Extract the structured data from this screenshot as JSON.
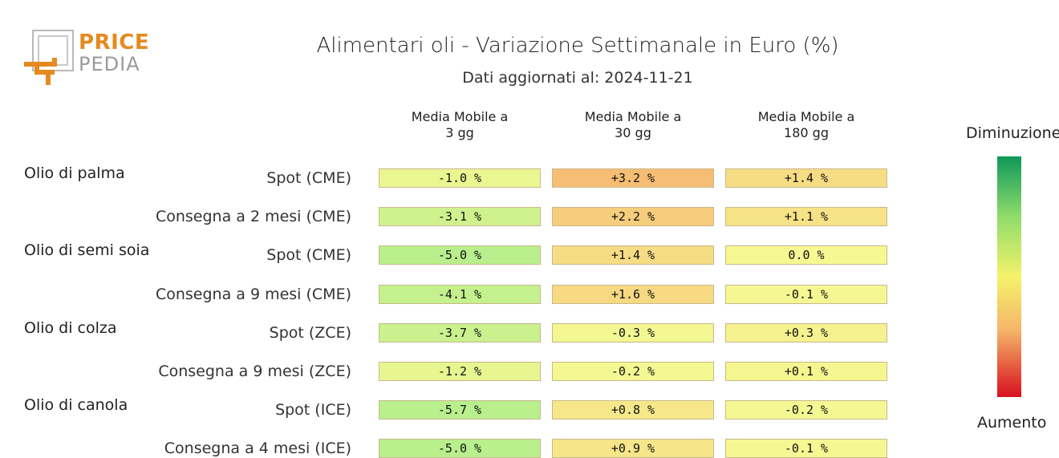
{
  "logo": {
    "price": "PRICE",
    "pedia": "PEDIA"
  },
  "title": "Alimentari oli - Variazione Settimanale in Euro (%)",
  "subtitle": "Dati aggiornati al: 2024-11-21",
  "legend": {
    "top_label": "Diminuzione",
    "bottom_label": "Aumento"
  },
  "colors": {
    "strong_decrease": "#10985a",
    "decrease": "#8fdc6a",
    "neutral": "#f4f26a",
    "increase": "#f5b66a",
    "strong_increase": "#d8101e",
    "logo_orange": "#e58a1f",
    "logo_gray": "#9a9a9a"
  },
  "chart_data": {
    "type": "heatmap",
    "title": "Alimentari oli - Variazione Settimanale in Euro (%)",
    "subtitle": "Dati aggiornati al: 2024-11-21",
    "columns": [
      "Media Mobile a\n3 gg",
      "Media Mobile a\n30 gg",
      "Media Mobile a\n180 gg"
    ],
    "groups": [
      "Olio di palma",
      "Olio di semi soia",
      "Olio di colza",
      "Olio di canola"
    ],
    "rows": [
      {
        "group": "Olio di palma",
        "label": "Spot (CME)",
        "values": [
          -1.0,
          3.2,
          1.4
        ],
        "display": [
          "-1.0 %",
          "+3.2 %",
          "+1.4 %"
        ]
      },
      {
        "group": "Olio di palma",
        "label": "Consegna a 2 mesi (CME)",
        "values": [
          -3.1,
          2.2,
          1.1
        ],
        "display": [
          "-3.1 %",
          "+2.2 %",
          "+1.1 %"
        ]
      },
      {
        "group": "Olio di semi soia",
        "label": "Spot (CME)",
        "values": [
          -5.0,
          1.4,
          0.0
        ],
        "display": [
          "-5.0 %",
          "+1.4 %",
          "0.0 %"
        ]
      },
      {
        "group": "Olio di semi soia",
        "label": "Consegna a 9 mesi (CME)",
        "values": [
          -4.1,
          1.6,
          -0.1
        ],
        "display": [
          "-4.1 %",
          "+1.6 %",
          "-0.1 %"
        ]
      },
      {
        "group": "Olio di colza",
        "label": "Spot (ZCE)",
        "values": [
          -3.7,
          -0.3,
          0.3
        ],
        "display": [
          "-3.7 %",
          "-0.3 %",
          "+0.3 %"
        ]
      },
      {
        "group": "Olio di colza",
        "label": "Consegna a 9 mesi (ZCE)",
        "values": [
          -1.2,
          -0.2,
          0.1
        ],
        "display": [
          "-1.2 %",
          "-0.2 %",
          "+0.1 %"
        ]
      },
      {
        "group": "Olio di canola",
        "label": "Spot (ICE)",
        "values": [
          -5.7,
          0.8,
          -0.2
        ],
        "display": [
          "-5.7 %",
          "+0.8 %",
          "-0.2 %"
        ]
      },
      {
        "group": "Olio di canola",
        "label": "Consegna a 4 mesi (ICE)",
        "values": [
          -5.0,
          0.9,
          -0.1
        ],
        "display": [
          "-5.0 %",
          "+0.9 %",
          "-0.1 %"
        ]
      }
    ]
  }
}
